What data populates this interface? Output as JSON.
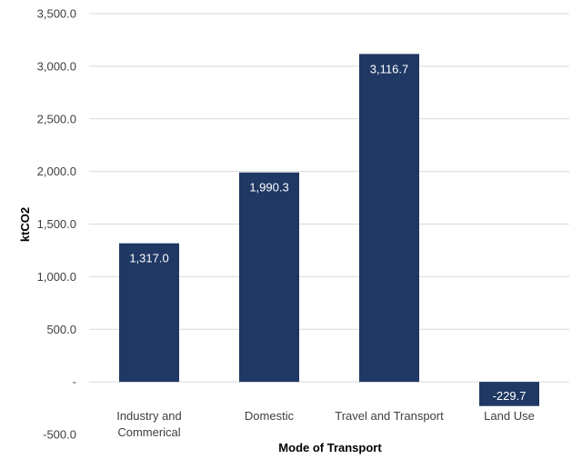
{
  "chart_data": {
    "type": "bar",
    "categories": [
      "Industry and Commerical",
      "Domestic",
      "Travel and Transport",
      "Land Use"
    ],
    "category_lines": [
      [
        "Industry and",
        "Commerical"
      ],
      [
        "Domestic"
      ],
      [
        "Travel and Transport"
      ],
      [
        "Land Use"
      ]
    ],
    "values": [
      1317.0,
      1990.3,
      3116.7,
      -229.7
    ],
    "data_labels": [
      "1,317.0",
      "1,990.3",
      "3,116.7",
      "-229.7"
    ],
    "title": "",
    "xlabel": "Mode of Transport",
    "ylabel": "ktCO2",
    "ylim": [
      -500,
      3500
    ],
    "yticks": [
      -500,
      0,
      500,
      1000,
      1500,
      2000,
      2500,
      3000,
      3500
    ],
    "ytick_labels": [
      "-500.0",
      "-",
      "500.0",
      "1,000.0",
      "1,500.0",
      "2,000.0",
      "2,500.0",
      "3,000.0",
      "3,500.0"
    ],
    "grid": true,
    "bar_color": "#1f3864",
    "legend": null
  }
}
